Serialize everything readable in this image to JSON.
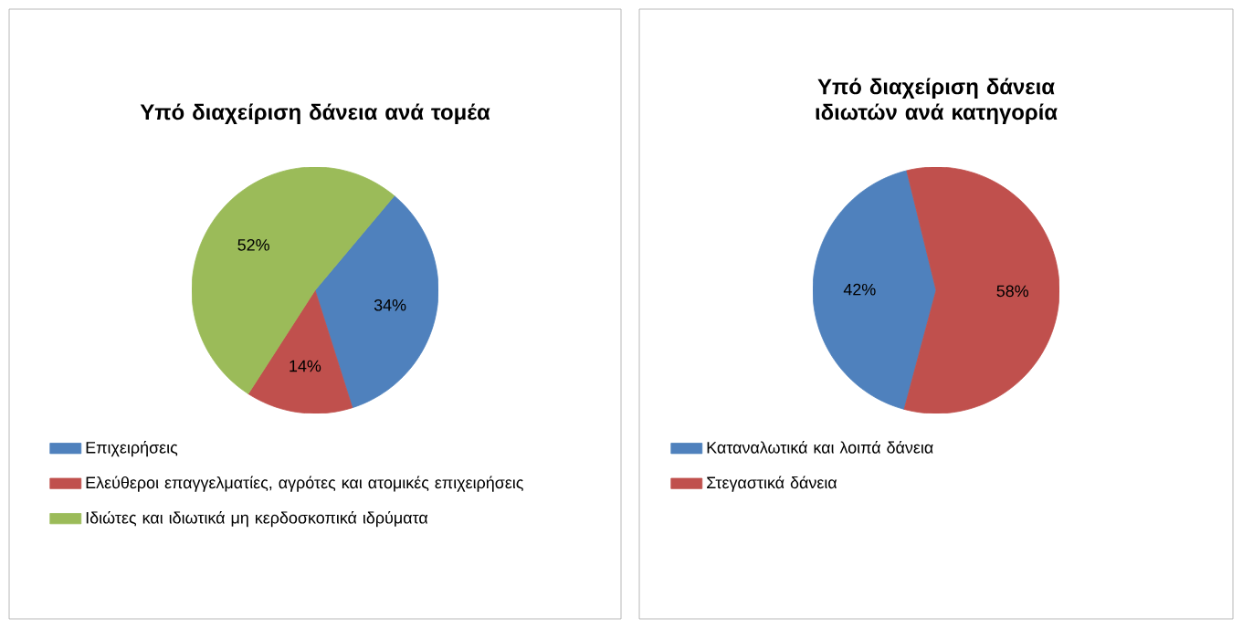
{
  "chart_data": [
    {
      "type": "pie",
      "title": "Υπό διαχείριση δάνεια ανά τομέα",
      "categories": [
        "Επιχειρήσεις",
        "Ελεύθεροι επαγγελματίες, αγρότες και ατομικές επιχειρήσεις",
        "Ιδιώτες και ιδιωτικά μη κερδοσκοπικά ιδρύματα"
      ],
      "values": [
        34,
        14,
        52
      ],
      "value_labels": [
        "34%",
        "14%",
        "52%"
      ],
      "colors": [
        "#4f81bd",
        "#c0504d",
        "#9bbb59"
      ],
      "legend": "bottom"
    },
    {
      "type": "pie",
      "title": "Υπό διαχείριση δάνεια ιδιωτών ανά κατηγορία",
      "categories": [
        "Καταναλωτικά και λοιπά δάνεια",
        "Στεγαστικά δάνεια"
      ],
      "values": [
        42,
        58
      ],
      "value_labels": [
        "42%",
        "58%"
      ],
      "colors": [
        "#4f81bd",
        "#c0504d"
      ],
      "legend": "bottom"
    }
  ]
}
